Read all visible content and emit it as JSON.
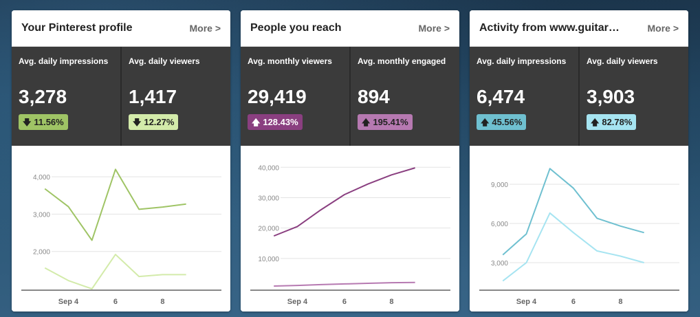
{
  "cards": [
    {
      "title": "Your Pinterest profile",
      "more": "More >",
      "stats": [
        {
          "label": "Avg. daily impressions",
          "value": "3,278",
          "change": "11.56%",
          "direction": "down",
          "badge_color": "#9fc465"
        },
        {
          "label": "Avg. daily viewers",
          "value": "1,417",
          "change": "12.27%",
          "direction": "down",
          "badge_color": "#d3ebaa"
        }
      ]
    },
    {
      "title": "People you reach",
      "more": "More >",
      "stats": [
        {
          "label": "Avg. monthly viewers",
          "value": "29,419",
          "change": "128.43%",
          "direction": "up",
          "badge_color": "#8a3f80"
        },
        {
          "label": "Avg. monthly engaged",
          "value": "894",
          "change": "195.41%",
          "direction": "up",
          "badge_color": "#b679b1"
        }
      ]
    },
    {
      "title": "Activity from www.guitar…",
      "more": "More >",
      "stats": [
        {
          "label": "Avg. daily impressions",
          "value": "6,474",
          "change": "45.56%",
          "direction": "up",
          "badge_color": "#6fc0d0"
        },
        {
          "label": "Avg. daily viewers",
          "value": "3,903",
          "change": "82.78%",
          "direction": "up",
          "badge_color": "#a6e4f1"
        }
      ]
    }
  ],
  "chart_data": [
    {
      "type": "line",
      "x": [
        3,
        4,
        5,
        6,
        7,
        8,
        9
      ],
      "xticks": [
        4,
        6,
        8
      ],
      "xticklabels": [
        "Sep 4",
        "6",
        "8"
      ],
      "ylim": [
        1000,
        4500
      ],
      "yticks": [
        2000,
        3000,
        4000
      ],
      "yticklabels": [
        "2,000",
        "3,000",
        "4,000"
      ],
      "series": [
        {
          "name": "Avg. daily impressions",
          "color": "#9fc465",
          "values": [
            3680,
            3200,
            2300,
            4200,
            3130,
            3190,
            3270
          ]
        },
        {
          "name": "Avg. daily viewers",
          "color": "#d3ebaa",
          "values": [
            1560,
            1220,
            1000,
            1920,
            1330,
            1380,
            1380
          ]
        }
      ]
    },
    {
      "type": "line",
      "x": [
        3,
        4,
        5,
        6,
        7,
        8,
        9
      ],
      "xticks": [
        4,
        6,
        8
      ],
      "xticklabels": [
        "Sep 4",
        "6",
        "8"
      ],
      "ylim": [
        0,
        43000
      ],
      "yticks": [
        10000,
        20000,
        30000,
        40000
      ],
      "yticklabels": [
        "10,000",
        "20,000",
        "30,000",
        "40,000"
      ],
      "series": [
        {
          "name": "Avg. monthly viewers",
          "color": "#8a3f80",
          "values": [
            17400,
            20500,
            26000,
            31000,
            34500,
            37500,
            39800
          ]
        },
        {
          "name": "Avg. monthly engaged",
          "color": "#b679b1",
          "values": [
            900,
            1100,
            1400,
            1600,
            1800,
            2000,
            2100
          ]
        }
      ]
    },
    {
      "type": "line",
      "x": [
        3,
        4,
        5,
        6,
        7,
        8,
        9
      ],
      "xticks": [
        4,
        6,
        8
      ],
      "xticklabels": [
        "Sep 4",
        "6",
        "8"
      ],
      "ylim": [
        1000,
        11000
      ],
      "yticks": [
        3000,
        6000,
        9000
      ],
      "yticklabels": [
        "3,000",
        "6,000",
        "9,000"
      ],
      "series": [
        {
          "name": "Avg. daily impressions",
          "color": "#6fc0d0",
          "values": [
            3600,
            5200,
            10200,
            8700,
            6400,
            5800,
            5300
          ]
        },
        {
          "name": "Avg. daily viewers",
          "color": "#a6e4f1",
          "values": [
            1600,
            3000,
            6800,
            5300,
            3900,
            3500,
            3000
          ]
        }
      ]
    }
  ]
}
